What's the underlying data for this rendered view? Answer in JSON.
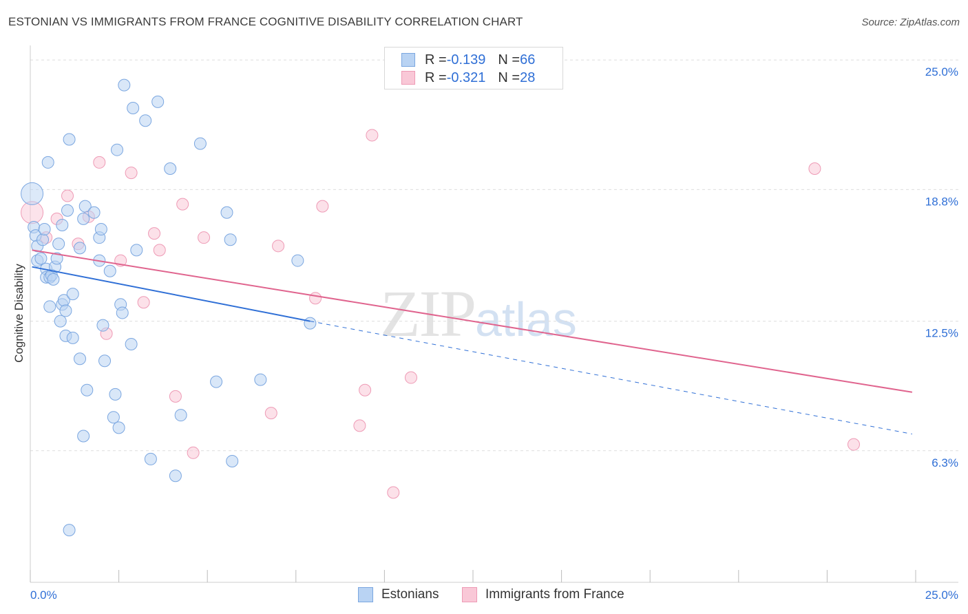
{
  "header": {
    "title": "ESTONIAN VS IMMIGRANTS FROM FRANCE COGNITIVE DISABILITY CORRELATION CHART",
    "source": "Source: ZipAtlas.com"
  },
  "watermark": {
    "zip": "ZIP",
    "atlas": "atlas"
  },
  "legend_top": {
    "rows": [
      {
        "r_label": "R = ",
        "r_value": "-0.139",
        "n_label": "N = ",
        "n_value": "66"
      },
      {
        "r_label": "R = ",
        "r_value": "-0.321",
        "n_label": "N = ",
        "n_value": "28"
      }
    ]
  },
  "colors": {
    "estonian_fill": "#b9d3f3",
    "estonian_stroke": "#7aa6e0",
    "estonian_line": "#2f6fd6",
    "france_fill": "#f9c8d7",
    "france_stroke": "#ee9ab5",
    "france_line": "#e0648e",
    "tick_label": "#2f6fd6",
    "grid": "#dddddd"
  },
  "chart_data": {
    "type": "scatter",
    "title": "ESTONIAN VS IMMIGRANTS FROM FRANCE COGNITIVE DISABILITY CORRELATION CHART",
    "xlabel": "",
    "ylabel": "Cognitive Disability",
    "xlim": [
      0,
      25
    ],
    "ylim": [
      0,
      25.5
    ],
    "x_tick_labels": [
      "0.0%",
      "25.0%"
    ],
    "y_ticks": [
      6.3,
      12.5,
      18.8,
      25.0
    ],
    "y_tick_labels": [
      "6.3%",
      "12.5%",
      "18.8%",
      "25.0%"
    ],
    "series": [
      {
        "name": "Estonians",
        "r": -0.139,
        "n": 66,
        "trend": {
          "x0": 0.05,
          "y0": 15.1,
          "x1": 7.9,
          "y1": 12.5,
          "dash_to_x": 24.9,
          "dash_to_y": 7.1
        },
        "points": [
          [
            0.05,
            18.6
          ],
          [
            0.1,
            17.0
          ],
          [
            0.15,
            16.6
          ],
          [
            0.2,
            16.1
          ],
          [
            0.2,
            15.4
          ],
          [
            0.3,
            15.5
          ],
          [
            0.35,
            16.4
          ],
          [
            0.4,
            16.9
          ],
          [
            0.45,
            15.0
          ],
          [
            0.45,
            14.6
          ],
          [
            0.55,
            14.6
          ],
          [
            0.6,
            14.7
          ],
          [
            0.65,
            14.5
          ],
          [
            0.7,
            15.1
          ],
          [
            0.75,
            15.5
          ],
          [
            0.55,
            13.2
          ],
          [
            0.8,
            16.2
          ],
          [
            0.85,
            12.5
          ],
          [
            0.9,
            13.3
          ],
          [
            0.9,
            17.1
          ],
          [
            0.95,
            13.5
          ],
          [
            1.0,
            13.0
          ],
          [
            1.0,
            11.8
          ],
          [
            1.05,
            17.8
          ],
          [
            1.1,
            21.2
          ],
          [
            1.2,
            11.7
          ],
          [
            1.2,
            13.8
          ],
          [
            0.5,
            20.1
          ],
          [
            1.4,
            10.7
          ],
          [
            1.4,
            16.0
          ],
          [
            1.5,
            17.4
          ],
          [
            1.55,
            18.0
          ],
          [
            1.6,
            9.2
          ],
          [
            1.5,
            7.0
          ],
          [
            1.8,
            17.7
          ],
          [
            1.95,
            16.5
          ],
          [
            2.0,
            16.9
          ],
          [
            1.95,
            15.4
          ],
          [
            2.05,
            12.3
          ],
          [
            2.1,
            10.6
          ],
          [
            2.25,
            14.9
          ],
          [
            2.35,
            7.9
          ],
          [
            2.45,
            20.7
          ],
          [
            2.5,
            7.4
          ],
          [
            2.55,
            13.3
          ],
          [
            2.6,
            12.9
          ],
          [
            2.65,
            23.8
          ],
          [
            2.85,
            11.4
          ],
          [
            2.9,
            22.7
          ],
          [
            3.0,
            15.9
          ],
          [
            3.25,
            22.1
          ],
          [
            3.4,
            5.9
          ],
          [
            3.6,
            23.0
          ],
          [
            3.95,
            19.8
          ],
          [
            4.1,
            5.1
          ],
          [
            4.25,
            8.0
          ],
          [
            4.8,
            21.0
          ],
          [
            5.25,
            9.6
          ],
          [
            5.7,
            5.8
          ],
          [
            5.55,
            17.7
          ],
          [
            5.65,
            16.4
          ],
          [
            6.5,
            9.7
          ],
          [
            7.55,
            15.4
          ],
          [
            7.9,
            12.4
          ],
          [
            1.1,
            2.5
          ],
          [
            2.4,
            9.0
          ]
        ]
      },
      {
        "name": "Immigrants from France",
        "r": -0.321,
        "n": 28,
        "trend": {
          "x0": 0.05,
          "y0": 15.9,
          "x1": 24.9,
          "y1": 9.1
        },
        "points": [
          [
            0.05,
            17.7
          ],
          [
            0.45,
            16.5
          ],
          [
            0.75,
            17.4
          ],
          [
            1.05,
            18.5
          ],
          [
            1.35,
            16.2
          ],
          [
            1.65,
            17.5
          ],
          [
            1.95,
            20.1
          ],
          [
            2.15,
            11.9
          ],
          [
            2.55,
            15.4
          ],
          [
            2.85,
            19.6
          ],
          [
            3.2,
            13.4
          ],
          [
            3.5,
            16.7
          ],
          [
            3.65,
            15.9
          ],
          [
            4.1,
            8.9
          ],
          [
            4.3,
            18.1
          ],
          [
            4.6,
            6.2
          ],
          [
            4.9,
            16.5
          ],
          [
            6.8,
            8.1
          ],
          [
            7.0,
            16.1
          ],
          [
            8.05,
            13.6
          ],
          [
            8.25,
            18.0
          ],
          [
            9.3,
            7.5
          ],
          [
            9.45,
            9.2
          ],
          [
            9.65,
            21.4
          ],
          [
            10.25,
            4.3
          ],
          [
            10.75,
            9.8
          ],
          [
            22.15,
            19.8
          ],
          [
            23.25,
            6.6
          ]
        ]
      }
    ]
  },
  "legend_bottom": {
    "estonians": "Estonians",
    "france": "Immigrants from France"
  }
}
